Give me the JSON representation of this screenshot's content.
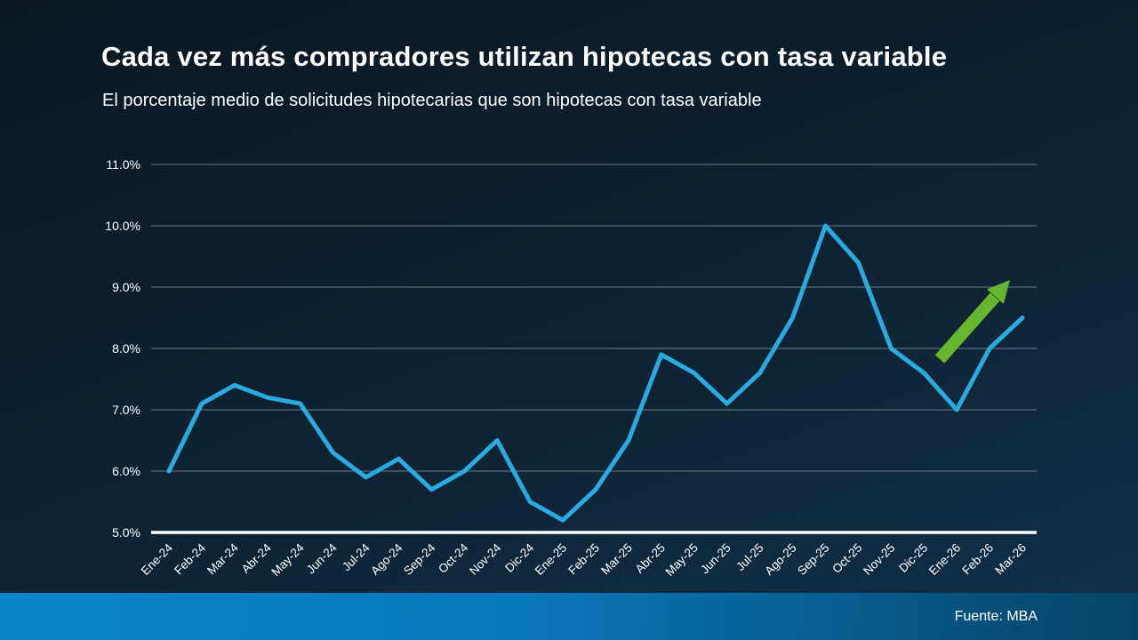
{
  "header": {
    "title": "Cada vez más compradores utilizan hipotecas con tasa variable",
    "subtitle": "El porcentaje medio de solicitudes hipotecarias que son hipotecas con tasa variable"
  },
  "source": {
    "label": "Fuente: MBA"
  },
  "colors": {
    "background_dark": "#0c1d2b",
    "background_light": "#113049",
    "line": "#29abe2",
    "arrow_green": "#65b52d",
    "grid": "#9aa0a5",
    "axis": "#ffffff",
    "text": "#ffffff",
    "footer_bar_left": "#0884cc",
    "footer_bar_right": "#064568"
  },
  "chart_data": {
    "type": "line",
    "title": "Cada vez más compradores utilizan hipotecas con tasa variable",
    "subtitle": "El porcentaje medio de solicitudes hipotecarias que son hipotecas con tasa variable",
    "xlabel": "",
    "ylabel": "",
    "grid": true,
    "legend": false,
    "ylim": [
      5.0,
      11.0
    ],
    "yticks": [
      {
        "value": 5.0,
        "label": "5.0%"
      },
      {
        "value": 6.0,
        "label": "6.0%"
      },
      {
        "value": 7.0,
        "label": "7.0%"
      },
      {
        "value": 8.0,
        "label": "8.0%"
      },
      {
        "value": 9.0,
        "label": "9.0%"
      },
      {
        "value": 10.0,
        "label": "10.0%"
      },
      {
        "value": 11.0,
        "label": "11.0%"
      }
    ],
    "categories": [
      "Ene-24",
      "Feb-24",
      "Mar-24",
      "Abr-24",
      "May-24",
      "Jun-24",
      "Jul-24",
      "Ago-24",
      "Sep-24",
      "Oct-24",
      "Nov-24",
      "Dic-24",
      "Ene-25",
      "Feb-25",
      "Mar-25",
      "Abr-25",
      "May-25",
      "Jun-25",
      "Jul-25",
      "Ago-25",
      "Sep-25",
      "Oct-25",
      "Nov-25",
      "Dic-25",
      "Ene-26",
      "Feb-26",
      "Mar-26"
    ],
    "values": [
      6.0,
      7.1,
      7.4,
      7.2,
      7.1,
      6.3,
      5.9,
      6.2,
      5.7,
      6.0,
      6.5,
      5.5,
      5.2,
      5.7,
      6.5,
      7.9,
      7.6,
      7.1,
      7.6,
      8.5,
      10.0,
      9.4,
      8.0,
      7.6,
      7.0,
      8.0,
      8.5
    ],
    "line_color": "#29abe2",
    "annotation": {
      "type": "arrow",
      "meaning": "upward-trend",
      "color": "#65b52d"
    },
    "source": "Fuente: MBA"
  }
}
